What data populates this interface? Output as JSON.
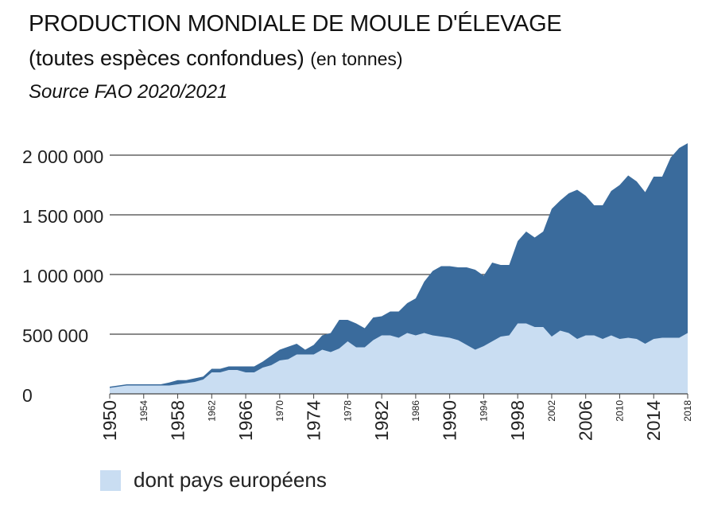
{
  "title": "PRODUCTION MONDIALE DE MOULE D'ÉLEVAGE",
  "subtitle": "(toutes espèces confondues)",
  "subtitle_unit": "(en tonnes)",
  "source": "Source FAO 2020/2021",
  "colors": {
    "world": "#3a6b9c",
    "europe": "#c9ddf2",
    "grid": "#444444"
  },
  "legend": {
    "europe_label": "dont pays européens"
  },
  "chart_data": {
    "type": "area",
    "title": "PRODUCTION MONDIALE DE MOULE D'ÉLEVAGE",
    "xlabel": "",
    "ylabel": "",
    "xlim": [
      1950,
      2018
    ],
    "ylim": [
      0,
      2000000
    ],
    "y_ticks": [
      {
        "value": 0,
        "label": "0"
      },
      {
        "value": 500000,
        "label": "500 000"
      },
      {
        "value": 1000000,
        "label": "1 000 000"
      },
      {
        "value": 1500000,
        "label": "1 500 000"
      },
      {
        "value": 2000000,
        "label": "2 000 000"
      }
    ],
    "x_ticks": [
      {
        "value": 1950,
        "label": "1950",
        "major": true
      },
      {
        "value": 1954,
        "label": "1954",
        "major": false
      },
      {
        "value": 1958,
        "label": "1958",
        "major": true
      },
      {
        "value": 1962,
        "label": "1962",
        "major": false
      },
      {
        "value": 1966,
        "label": "1966",
        "major": true
      },
      {
        "value": 1970,
        "label": "1970",
        "major": false
      },
      {
        "value": 1974,
        "label": "1974",
        "major": true
      },
      {
        "value": 1978,
        "label": "1978",
        "major": false
      },
      {
        "value": 1982,
        "label": "1982",
        "major": true
      },
      {
        "value": 1986,
        "label": "1986",
        "major": false
      },
      {
        "value": 1990,
        "label": "1990",
        "major": true
      },
      {
        "value": 1994,
        "label": "1994",
        "major": false
      },
      {
        "value": 1998,
        "label": "1998",
        "major": true
      },
      {
        "value": 2002,
        "label": "2002",
        "major": false
      },
      {
        "value": 2006,
        "label": "2006",
        "major": true
      },
      {
        "value": 2010,
        "label": "2010",
        "major": false
      },
      {
        "value": 2014,
        "label": "2014",
        "major": true
      },
      {
        "value": 2018,
        "label": "2018",
        "major": false
      }
    ],
    "grid": true,
    "legend_position": "bottom-left",
    "x": [
      1950,
      1951,
      1952,
      1953,
      1954,
      1955,
      1956,
      1957,
      1958,
      1959,
      1960,
      1961,
      1962,
      1963,
      1964,
      1965,
      1966,
      1967,
      1968,
      1969,
      1970,
      1971,
      1972,
      1973,
      1974,
      1975,
      1976,
      1977,
      1978,
      1979,
      1980,
      1981,
      1982,
      1983,
      1984,
      1985,
      1986,
      1987,
      1988,
      1989,
      1990,
      1991,
      1992,
      1993,
      1994,
      1995,
      1996,
      1997,
      1998,
      1999,
      2000,
      2001,
      2002,
      2003,
      2004,
      2005,
      2006,
      2007,
      2008,
      2009,
      2010,
      2011,
      2012,
      2013,
      2014,
      2015,
      2016,
      2017,
      2018
    ],
    "series": [
      {
        "key": "world",
        "values": [
          60000,
          70000,
          80000,
          80000,
          80000,
          80000,
          80000,
          95000,
          115000,
          115000,
          130000,
          145000,
          210000,
          210000,
          230000,
          230000,
          230000,
          230000,
          270000,
          320000,
          370000,
          395000,
          420000,
          370000,
          410000,
          490000,
          510000,
          620000,
          620000,
          590000,
          550000,
          640000,
          650000,
          690000,
          690000,
          760000,
          800000,
          940000,
          1030000,
          1070000,
          1070000,
          1060000,
          1060000,
          1040000,
          990000,
          1100000,
          1080000,
          1080000,
          1280000,
          1360000,
          1310000,
          1360000,
          1550000,
          1620000,
          1680000,
          1710000,
          1660000,
          1580000,
          1580000,
          1700000,
          1750000,
          1830000,
          1780000,
          1690000,
          1820000,
          1820000,
          1980000,
          2060000,
          2100000
        ]
      },
      {
        "key": "europe",
        "name": "dont pays européens",
        "values": [
          50000,
          60000,
          70000,
          70000,
          70000,
          70000,
          70000,
          70000,
          80000,
          90000,
          100000,
          120000,
          180000,
          180000,
          200000,
          200000,
          180000,
          180000,
          220000,
          240000,
          280000,
          290000,
          330000,
          330000,
          330000,
          370000,
          350000,
          380000,
          440000,
          390000,
          390000,
          450000,
          490000,
          490000,
          470000,
          510000,
          490000,
          510000,
          490000,
          480000,
          470000,
          450000,
          410000,
          370000,
          400000,
          440000,
          480000,
          490000,
          590000,
          590000,
          560000,
          560000,
          480000,
          530000,
          510000,
          460000,
          490000,
          490000,
          460000,
          490000,
          460000,
          470000,
          460000,
          420000,
          460000,
          470000,
          470000,
          470000,
          510000
        ]
      }
    ]
  }
}
